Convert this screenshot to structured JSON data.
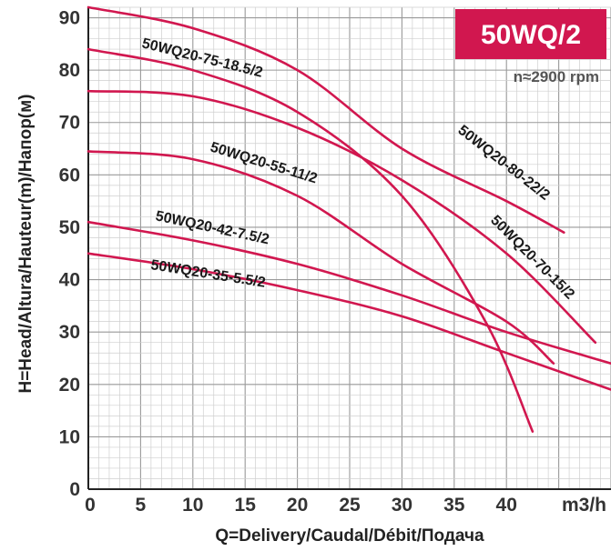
{
  "chart_data": {
    "type": "line",
    "title": "50WQ/2",
    "subtitle": "n≈2900 rpm",
    "xlabel": "Q=Delivery/Caudal/Débit/Подача",
    "ylabel": "H=Head/Altura/Hauteur(m)/Напор(м)",
    "x_unit": "m3/h",
    "xlim": [
      0,
      50
    ],
    "ylim": [
      0,
      92
    ],
    "x_ticks": [
      "0",
      "5",
      "10",
      "15",
      "20",
      "25",
      "30",
      "35",
      "40"
    ],
    "y_ticks": [
      "0",
      "10",
      "20",
      "30",
      "40",
      "50",
      "60",
      "70",
      "80",
      "90"
    ],
    "grid": true,
    "colors": {
      "curve": "#d1174f",
      "badge": "#d1174f",
      "grid": "#bbbbbb"
    },
    "series": [
      {
        "name": "50WQ20-80-22/2",
        "x": [
          0,
          10,
          20,
          30,
          40,
          45.5
        ],
        "y": [
          92,
          88,
          80,
          65,
          55,
          49
        ]
      },
      {
        "name": "50WQ20-75-18.5/2",
        "x": [
          0,
          10,
          20,
          30,
          38,
          42.5
        ],
        "y": [
          84,
          80,
          72,
          56,
          32,
          11
        ]
      },
      {
        "name": "50WQ20-70-15/2",
        "x": [
          0,
          10,
          20,
          30,
          40,
          48.5
        ],
        "y": [
          76,
          75,
          69,
          59,
          45,
          28
        ]
      },
      {
        "name": "50WQ20-55-11/2",
        "x": [
          0,
          10,
          20,
          30,
          40,
          44.5
        ],
        "y": [
          64.5,
          63,
          56,
          43,
          32,
          24
        ]
      },
      {
        "name": "50WQ20-42-7.5/2",
        "x": [
          0,
          10,
          20,
          30,
          40,
          50
        ],
        "y": [
          51,
          47.5,
          43,
          37,
          30,
          24
        ]
      },
      {
        "name": "50WQ20-35-5.5/2",
        "x": [
          0,
          10,
          20,
          30,
          40,
          50
        ],
        "y": [
          45,
          42,
          38,
          33,
          26,
          19
        ]
      }
    ]
  }
}
